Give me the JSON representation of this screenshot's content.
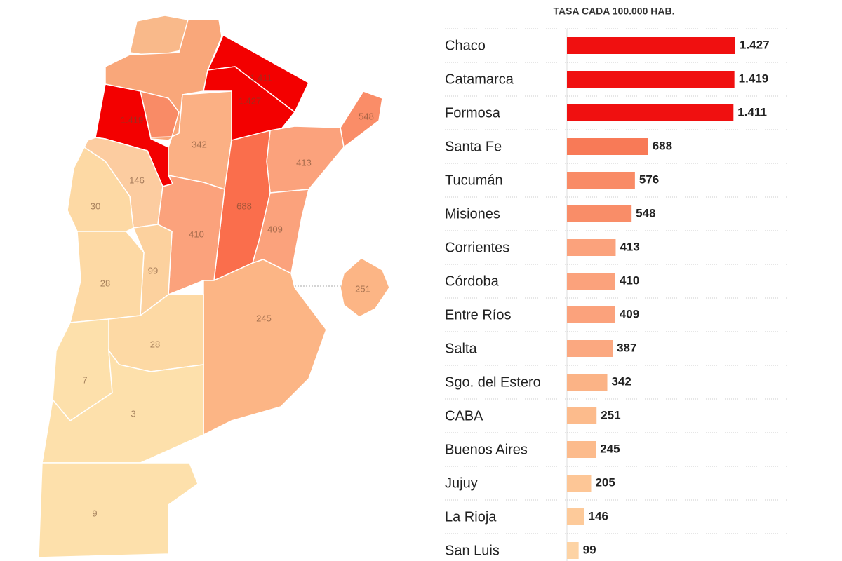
{
  "chart_data": [
    {
      "type": "bar",
      "title": "TASA CADA 100.000 HAB.",
      "categories": [
        "Chaco",
        "Catamarca",
        "Formosa",
        "Santa Fe",
        "Tucumán",
        "Misiones",
        "Corrientes",
        "Córdoba",
        "Entre Ríos",
        "Salta",
        "Sgo. del Estero",
        "CABA",
        "Buenos Aires",
        "Jujuy",
        "La Rioja",
        "San Luis"
      ],
      "values": [
        1427,
        1419,
        1411,
        688,
        576,
        548,
        413,
        410,
        409,
        387,
        342,
        251,
        245,
        205,
        146,
        99
      ],
      "value_labels": [
        "1.427",
        "1.419",
        "1.411",
        "688",
        "576",
        "548",
        "413",
        "410",
        "409",
        "387",
        "342",
        "251",
        "245",
        "205",
        "146",
        "99"
      ],
      "colors": [
        "#f01010",
        "#f01010",
        "#f01010",
        "#f87a57",
        "#f98b66",
        "#f98d68",
        "#fba27c",
        "#fba27c",
        "#fba27c",
        "#fba880",
        "#fbb386",
        "#fcbb8c",
        "#fcbb8c",
        "#fdc696",
        "#fdca9a",
        "#fdd3a4"
      ]
    },
    {
      "type": "choropleth",
      "values": [
        1411,
        1427,
        1419,
        548,
        342,
        413,
        146,
        688,
        30,
        410,
        409,
        99,
        28,
        251,
        245,
        28,
        7,
        3,
        9
      ],
      "value_labels": [
        "1.411",
        "1.427",
        "1.419",
        "548",
        "342",
        "413",
        "146",
        "688",
        "30",
        "410",
        "409",
        "99",
        "28",
        "251",
        "245",
        "28",
        "7",
        "3",
        "9"
      ],
      "colors": [
        "#f30000",
        "#f30000",
        "#f30000",
        "#fa8d68",
        "#fbb084",
        "#fba27c",
        "#fccca0",
        "#fa6e4c",
        "#fdd9a4",
        "#fba27c",
        "#fba27c",
        "#fcd19e",
        "#fdd9a4",
        "#fcb585",
        "#fcb585",
        "#fdd9a4",
        "#fde0ab",
        "#fde0ab",
        "#fde0ab"
      ]
    }
  ]
}
